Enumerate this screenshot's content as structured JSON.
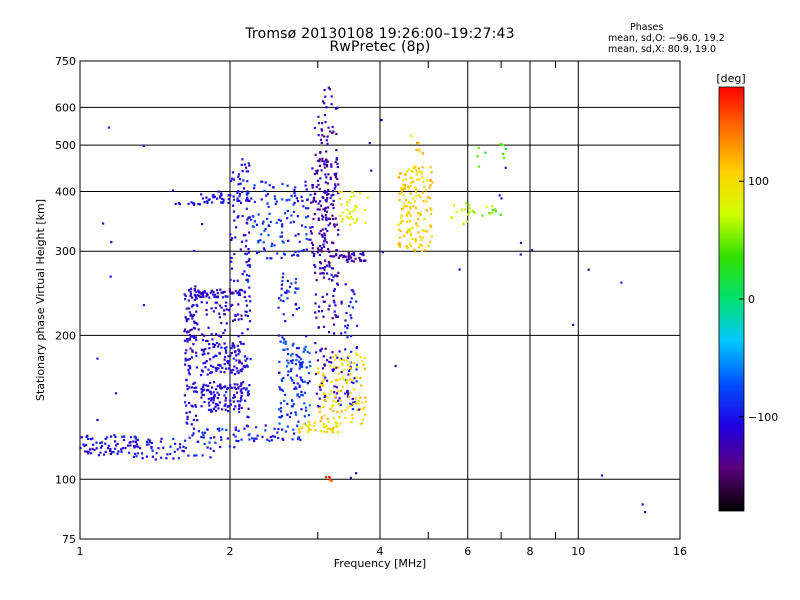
{
  "title_line1": "Tromsø 20130108 19:26:00–19:27:43",
  "title_line2": "RwPretec (8p)",
  "stats": {
    "heading": "Phases",
    "line_o": "mean, sd,O: −96.0, 19.2",
    "line_x": "mean, sd,X:  80.9, 19.0"
  },
  "chart_data": {
    "type": "scatter",
    "title": "Tromsø 20130108 19:26:00–19:27:43",
    "subtitle": "RwPretec (8p)",
    "xlabel": "Frequency [MHz]",
    "ylabel": "Stationary phase Virtual Height [km]",
    "x_scale": "log",
    "y_scale": "log",
    "xlim": [
      1,
      16
    ],
    "ylim": [
      75,
      750
    ],
    "x_ticks": [
      1,
      2,
      4,
      6,
      8,
      10,
      16
    ],
    "x_tick_labels": [
      "1",
      "2",
      "4",
      "6",
      "8",
      "10",
      "16"
    ],
    "x_gridlines": [
      2,
      4,
      6,
      8,
      10
    ],
    "x_minor_ticks": [
      3,
      5,
      7,
      9
    ],
    "y_ticks": [
      75,
      100,
      200,
      300,
      400,
      500,
      600,
      750
    ],
    "y_tick_labels": [
      "75",
      "100",
      "200",
      "300",
      "400",
      "500",
      "600",
      "750"
    ],
    "y_gridlines": [
      100,
      200,
      300,
      400,
      500,
      600
    ],
    "grid": true,
    "colorbar": {
      "label": "[deg]",
      "range": [
        -180,
        180
      ],
      "ticks": [
        -100,
        0,
        100
      ],
      "tick_labels": [
        "−100",
        "0",
        "100"
      ],
      "colors": [
        "#000000",
        "#5a007a",
        "#2200e0",
        "#0050ff",
        "#00c8ff",
        "#00e070",
        "#30e000",
        "#d0ff00",
        "#ffd000",
        "#ff7000",
        "#ff0000"
      ]
    },
    "series": [
      {
        "x_range": [
          1.0,
          1.3
        ],
        "y_range": [
          112,
          124
        ],
        "phase": -105,
        "n": 70
      },
      {
        "x_range": [
          1.28,
          1.62
        ],
        "y_range": [
          110,
          122
        ],
        "phase": -100,
        "n": 45
      },
      {
        "x_range": [
          1.62,
          2.05
        ],
        "y_range": [
          112,
          128
        ],
        "phase": -95,
        "n": 40
      },
      {
        "x_range": [
          2.05,
          2.8
        ],
        "y_range": [
          120,
          130
        ],
        "phase": -95,
        "n": 45
      },
      {
        "x_range": [
          1.62,
          1.72
        ],
        "y_range": [
          130,
          260
        ],
        "phase": -110,
        "n": 90
      },
      {
        "x_range": [
          1.75,
          2.15
        ],
        "y_range": [
          138,
          160
        ],
        "phase": -110,
        "n": 110
      },
      {
        "x_range": [
          1.75,
          2.15
        ],
        "y_range": [
          165,
          195
        ],
        "phase": -112,
        "n": 110
      },
      {
        "x_range": [
          1.65,
          2.15
        ],
        "y_range": [
          240,
          250
        ],
        "phase": -112,
        "n": 70
      },
      {
        "x_range": [
          1.62,
          2.15
        ],
        "y_range": [
          195,
          235
        ],
        "phase": -115,
        "n": 70
      },
      {
        "x_range": [
          1.55,
          1.75
        ],
        "y_range": [
          375,
          380
        ],
        "phase": -110,
        "n": 12
      },
      {
        "x_range": [
          1.75,
          2.2
        ],
        "y_range": [
          378,
          400
        ],
        "phase": -100,
        "n": 40
      },
      {
        "x_range": [
          2.0,
          2.2
        ],
        "y_range": [
          260,
          480
        ],
        "phase": -105,
        "n": 65
      },
      {
        "x_range": [
          2.15,
          2.2
        ],
        "y_range": [
          130,
          400
        ],
        "phase": -100,
        "n": 40
      },
      {
        "x_range": [
          2.2,
          2.9
        ],
        "y_range": [
          290,
          420
        ],
        "phase": -90,
        "n": 120
      },
      {
        "x_range": [
          2.5,
          2.9
        ],
        "y_range": [
          130,
          200
        ],
        "phase": -85,
        "n": 120
      },
      {
        "x_range": [
          2.5,
          2.75
        ],
        "y_range": [
          220,
          270
        ],
        "phase": -90,
        "n": 30
      },
      {
        "x_range": [
          2.9,
          3.2
        ],
        "y_range": [
          280,
          480
        ],
        "phase": -125,
        "n": 90
      },
      {
        "x_range": [
          3.0,
          3.3
        ],
        "y_range": [
          260,
          660
        ],
        "phase": -125,
        "n": 130
      },
      {
        "x_range": [
          2.95,
          3.35
        ],
        "y_range": [
          140,
          300
        ],
        "phase": -120,
        "n": 100
      },
      {
        "x_range": [
          3.3,
          3.75
        ],
        "y_range": [
          285,
          300
        ],
        "phase": -125,
        "n": 35
      },
      {
        "x_range": [
          3.4,
          3.6
        ],
        "y_range": [
          140,
          260
        ],
        "phase": -100,
        "n": 50
      },
      {
        "x_range": [
          2.75,
          3.3
        ],
        "y_range": [
          125,
          132
        ],
        "phase": 100,
        "n": 40
      },
      {
        "x_range": [
          3.0,
          3.75
        ],
        "y_range": [
          130,
          175
        ],
        "phase": 105,
        "n": 100
      },
      {
        "x_range": [
          3.2,
          3.75
        ],
        "y_range": [
          175,
          185
        ],
        "phase": 100,
        "n": 15
      },
      {
        "x_range": [
          3.3,
          3.8
        ],
        "y_range": [
          340,
          400
        ],
        "phase": 90,
        "n": 35
      },
      {
        "x_range": [
          4.35,
          5.1
        ],
        "y_range": [
          300,
          450
        ],
        "phase": 105,
        "n": 150
      },
      {
        "x_range": [
          4.5,
          5.0
        ],
        "y_range": [
          440,
          540
        ],
        "phase": 110,
        "n": 12
      },
      {
        "x_range": [
          5.5,
          6.0
        ],
        "y_range": [
          340,
          380
        ],
        "phase": 80,
        "n": 10
      },
      {
        "x_range": [
          6.0,
          7.0
        ],
        "y_range": [
          355,
          375
        ],
        "phase": 60,
        "n": 18
      },
      {
        "x_range": [
          6.2,
          7.2
        ],
        "y_range": [
          450,
          510
        ],
        "phase": 40,
        "n": 10
      },
      {
        "x_range": [
          3.1,
          3.2
        ],
        "y_range": [
          99,
          102
        ],
        "phase": 150,
        "n": 6
      },
      {
        "x_range": [
          1.0,
          16.0
        ],
        "y_range": [
          80,
          620
        ],
        "phase": -110,
        "n": 40
      }
    ]
  }
}
